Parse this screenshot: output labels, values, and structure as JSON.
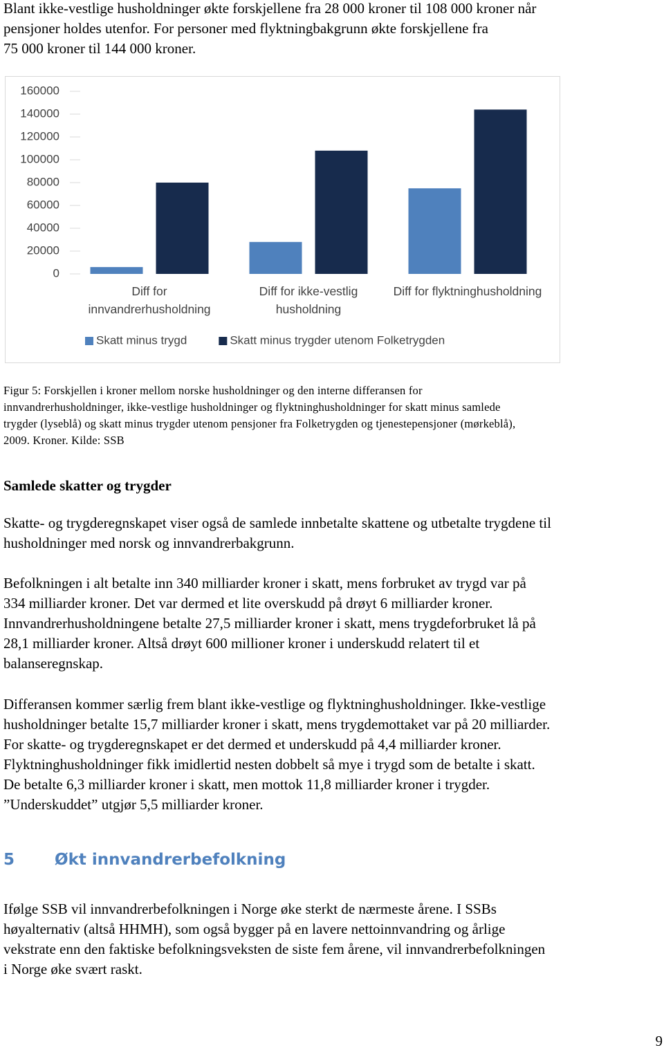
{
  "intro": [
    "Blant ikke-vestlige husholdninger økte forskjellene fra 28 000 kroner til 108 000 kroner når",
    "pensjoner holdes utenfor. For personer med flyktningbakgrunn økte forskjellene fra",
    "75 000 kroner til 144 000 kroner."
  ],
  "chart_data": {
    "type": "bar",
    "categories": [
      "Diff for innvandrerhusholdning",
      "Diff for ikke-vestlig husholdning",
      "Diff for flyktninghusholdning"
    ],
    "series": [
      {
        "name": "Skatt minus trygd",
        "color": "#4f81bd",
        "values": [
          6000,
          28000,
          75000
        ]
      },
      {
        "name": "Skatt minus trygder utenom Folketrygden",
        "color": "#172b4d",
        "values": [
          80000,
          108000,
          144000
        ]
      }
    ],
    "ylim": [
      0,
      160000
    ],
    "yticks": [
      0,
      20000,
      40000,
      60000,
      80000,
      100000,
      120000,
      140000,
      160000
    ],
    "grid": false,
    "legend": "bottom"
  },
  "caption": [
    "Figur 5: Forskjellen i kroner mellom norske husholdninger og den interne differansen for",
    "innvandrerhusholdninger, ikke-vestlige husholdninger og flyktninghusholdninger for skatt minus samlede",
    "trygder (lyseblå) og skatt minus trygder utenom pensjoner fra Folketrygden og tjenestepensjoner (mørkeblå),",
    "2009. Kroner. Kilde: SSB"
  ],
  "heading": "Samlede skatter og trygder",
  "paragraphs": [
    [
      "Skatte- og trygderegnskapet viser også de samlede innbetalte skattene og utbetalte trygdene til",
      "husholdninger med norsk og innvandrerbakgrunn."
    ],
    [
      "Befolkningen i alt betalte inn 340 milliarder kroner i skatt, mens forbruket av trygd var på",
      "334 milliarder kroner. Det var dermed et lite overskudd på drøyt 6 milliarder kroner.",
      "Innvandrerhusholdningene betalte 27,5 milliarder kroner i skatt, mens trygdeforbruket lå på",
      "28,1 milliarder kroner. Altså drøyt 600 millioner kroner i underskudd relatert til et",
      "balanseregnskap."
    ],
    [
      "Differansen kommer særlig frem blant ikke-vestlige og flyktninghusholdninger. Ikke-vestlige",
      "husholdninger betalte 15,7 milliarder kroner i skatt, mens trygdemottaket var på 20 milliarder.",
      "For skatte- og trygderegnskapet er det dermed et underskudd på 4,4 milliarder kroner.",
      "Flyktninghusholdninger fikk imidlertid nesten dobbelt så mye i trygd som de betalte i skatt.",
      "De betalte 6,3 milliarder kroner i skatt, men mottok 11,8 milliarder kroner i trygder.",
      "”Underskuddet” utgjør 5,5 milliarder kroner."
    ]
  ],
  "section": {
    "number": "5",
    "title": "Økt innvandrerbefolkning"
  },
  "last_paragraph": [
    "Ifølge SSB vil innvandrerbefolkningen i Norge øke sterkt de nærmeste årene. I SSBs",
    "høyalternativ (altså HHMH), som også bygger på en lavere nettoinnvandring og årlige",
    "vekstrate enn den faktiske befolkningsveksten de siste fem årene, vil innvandrerbefolkningen",
    "i Norge øke svært raskt."
  ],
  "page_number": "9"
}
